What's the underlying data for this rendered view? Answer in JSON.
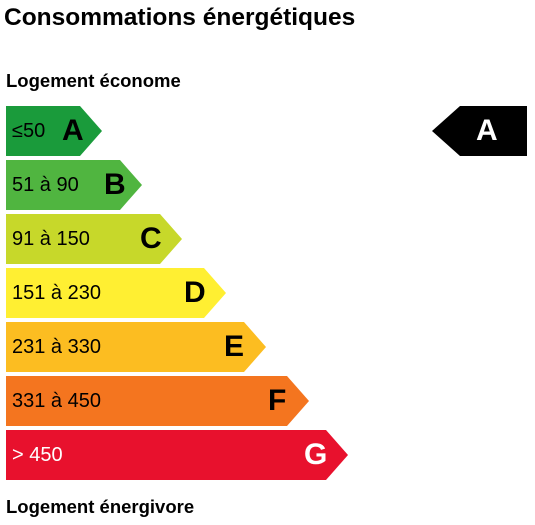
{
  "title": "Consommations énergétiques",
  "top_label": "Logement économe",
  "bottom_label": "Logement énergivore",
  "classes": [
    {
      "range": "≤50",
      "letter": "A",
      "color": "#1a9b3b"
    },
    {
      "range": "51 à 90",
      "letter": "B",
      "color": "#50b540"
    },
    {
      "range": "91 à 150",
      "letter": "C",
      "color": "#c7d82a"
    },
    {
      "range": "151 à 230",
      "letter": "D",
      "color": "#ffef32"
    },
    {
      "range": "231 à 330",
      "letter": "E",
      "color": "#fcbd21"
    },
    {
      "range": "331 à 450",
      "letter": "F",
      "color": "#f4751f"
    },
    {
      "range": "> 450",
      "letter": "G",
      "color": "#e8112d"
    }
  ],
  "current_rating": {
    "letter": "A",
    "color": "#000000"
  }
}
